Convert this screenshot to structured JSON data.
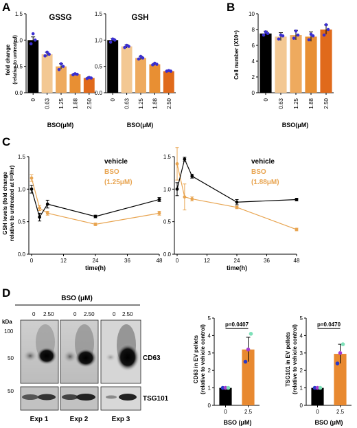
{
  "panels": {
    "a": "A",
    "b": "B",
    "c": "C",
    "d": "D"
  },
  "colors": {
    "vehicle": "#000000",
    "bso_line": "#e8a450",
    "dots": "#3a2fd1",
    "bars": [
      "#000000",
      "#f3c893",
      "#eeaa5e",
      "#e88f33",
      "#e06a1b"
    ],
    "bar_d_ctrl": "#000000",
    "bar_d_bso": "#e88930",
    "dots_d": [
      "#2a3ac6",
      "#a43ad0",
      "#7de0b8"
    ]
  },
  "chart_data": [
    {
      "id": "A-GSSG",
      "type": "bar",
      "title": "GSSG",
      "categories": [
        "0",
        "0.63",
        "1.25",
        "1.88",
        "2.50"
      ],
      "values": [
        1.0,
        0.73,
        0.5,
        0.35,
        0.28
      ],
      "errors": [
        0.06,
        0.04,
        0.05,
        0.02,
        0.02
      ],
      "points": [
        [
          0.93,
          1.0,
          1.12
        ],
        [
          0.7,
          0.73,
          0.77
        ],
        [
          0.44,
          0.5,
          0.55
        ],
        [
          0.34,
          0.35,
          0.36
        ],
        [
          0.27,
          0.28,
          0.29
        ]
      ],
      "ylabel": "fold change",
      "ylabel2": "(relative to untreated)",
      "xlabel": "BSO(μM)",
      "ylim": [
        0,
        1.5
      ],
      "yticks": [
        "0.0",
        "0.5",
        "1.0",
        "1.5"
      ]
    },
    {
      "id": "A-GSH",
      "type": "bar",
      "title": "GSH",
      "categories": [
        "0",
        "0.63",
        "1.25",
        "1.88",
        "2.50"
      ],
      "values": [
        1.0,
        0.88,
        0.66,
        0.54,
        0.41
      ],
      "errors": [
        0.03,
        0.03,
        0.03,
        0.02,
        0.01
      ],
      "points": [
        [
          0.96,
          1.0,
          1.02
        ],
        [
          0.86,
          0.88,
          0.9
        ],
        [
          0.64,
          0.66,
          0.69
        ],
        [
          0.53,
          0.54,
          0.56
        ],
        [
          0.41,
          0.41,
          0.42
        ]
      ],
      "xlabel": "BSO(μM)",
      "ylim": [
        0,
        1.5
      ],
      "yticks": [
        "0.0",
        "0.5",
        "1.0",
        "1.5"
      ]
    },
    {
      "id": "B",
      "type": "bar",
      "categories": [
        "0",
        "0.63",
        "1.25",
        "1.88",
        "2.50"
      ],
      "values": [
        7.5,
        7.1,
        7.3,
        7.1,
        8.0
      ],
      "errors": [
        0.3,
        0.5,
        0.6,
        0.6,
        0.6
      ],
      "points": [
        [
          7.3,
          7.5,
          7.7
        ],
        [
          6.8,
          7.2,
          7.3
        ],
        [
          6.9,
          7.3,
          7.8
        ],
        [
          6.7,
          7.2,
          7.4
        ],
        [
          7.3,
          8.0,
          8.6
        ]
      ],
      "ylabel": "Cell number (X10⁵)",
      "xlabel": "BSO(μM)",
      "ylim": [
        0,
        10
      ],
      "yticks": [
        "0",
        "2",
        "4",
        "6",
        "8",
        "10"
      ]
    },
    {
      "id": "C-left",
      "type": "line",
      "x": [
        0,
        3,
        6,
        24,
        48
      ],
      "series": [
        {
          "name": "vehicle",
          "values": [
            1.0,
            0.57,
            0.77,
            0.58,
            0.84
          ],
          "errors": [
            0.06,
            0.06,
            0.06,
            0.02,
            0.03
          ]
        },
        {
          "name": "BSO (1.25μM)",
          "values": [
            1.17,
            0.71,
            0.63,
            0.46,
            0.63
          ],
          "errors": [
            0.05,
            0.04,
            0.03,
            0.02,
            0.03
          ]
        }
      ],
      "ylabel": "GSH levels (fold change",
      "ylabel2": "relative to untreated at t=0hr)",
      "xlabel": "time(h)",
      "xlim": [
        0,
        48
      ],
      "xticks": [
        "0",
        "12",
        "24",
        "36",
        "48"
      ],
      "ylim": [
        0,
        1.5
      ],
      "yticks": [
        "0.0",
        "0.5",
        "1.0",
        "1.5"
      ]
    },
    {
      "id": "C-right",
      "type": "line",
      "x": [
        0,
        3,
        6,
        24,
        48
      ],
      "series": [
        {
          "name": "vehicle",
          "values": [
            1.0,
            1.46,
            1.2,
            0.8,
            0.84
          ],
          "errors": [
            0.1,
            0.03,
            0.03,
            0.04,
            0.02
          ]
        },
        {
          "name": "BSO (1.88μM)",
          "values": [
            1.39,
            0.88,
            0.85,
            0.72,
            0.38
          ],
          "errors": [
            0.25,
            0.2,
            0.03,
            0.02,
            0.02
          ]
        }
      ],
      "xlabel": "time(h)",
      "xlim": [
        0,
        48
      ],
      "xticks": [
        "0",
        "12",
        "24",
        "36",
        "48"
      ],
      "ylim": [
        0,
        1.5
      ],
      "yticks": [
        "0.0",
        "0.5",
        "1.0",
        "1.5"
      ]
    },
    {
      "id": "D-CD63",
      "type": "bar",
      "categories": [
        "0",
        "2.5"
      ],
      "values": [
        1.0,
        3.2
      ],
      "errors": [
        0.02,
        0.7
      ],
      "points": [
        [
          1.0,
          1.0,
          1.0
        ],
        [
          2.5,
          3.2,
          4.1
        ]
      ],
      "pvalue": "p=0.0407",
      "ylabel": "CD63 in EV pellets",
      "ylabel2": "(relative to vehicle control)",
      "xlabel": "BSO (μM)",
      "ylim": [
        0,
        5
      ],
      "yticks": [
        "0",
        "1",
        "2",
        "3",
        "4",
        "5"
      ]
    },
    {
      "id": "D-TSG101",
      "type": "bar",
      "categories": [
        "0",
        "2.5"
      ],
      "values": [
        1.0,
        2.95
      ],
      "errors": [
        0.02,
        0.55
      ],
      "points": [
        [
          1.0,
          1.0,
          1.0
        ],
        [
          2.4,
          3.0,
          3.5
        ]
      ],
      "pvalue": "p=0.0470",
      "ylabel": "TSG101 in EV pellets",
      "ylabel2": "(relative to vehicle control)",
      "xlabel": "BSO (μM)",
      "ylim": [
        0,
        5
      ],
      "yticks": [
        "0",
        "1",
        "2",
        "3",
        "4",
        "5"
      ]
    }
  ],
  "legend": {
    "left": {
      "vehicle": "vehicle",
      "bso1": "BSO",
      "bso2": "(1.25μM)"
    },
    "right": {
      "vehicle": "vehicle",
      "bso1": "BSO",
      "bso2": "(1.88μM)"
    }
  },
  "blot": {
    "header": "BSO (μM)",
    "lanes": [
      "0",
      "2.50",
      "0",
      "2.50",
      "0",
      "2.50"
    ],
    "kda": "kDa",
    "markers": [
      "100",
      "50",
      "50"
    ],
    "proteins": [
      "CD63",
      "TSG101"
    ],
    "experiments": [
      "Exp 1",
      "Exp 2",
      "Exp 3"
    ]
  }
}
